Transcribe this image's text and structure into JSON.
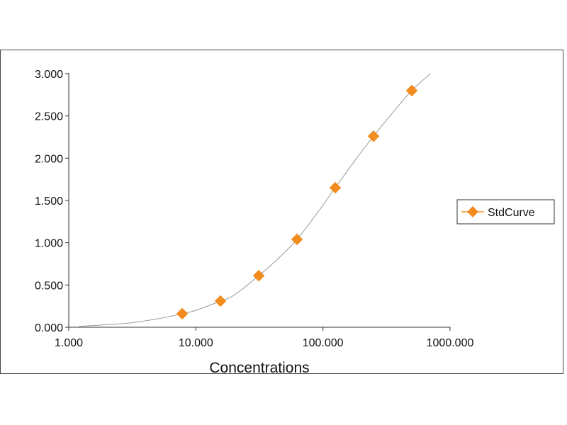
{
  "chart_data": {
    "type": "scatter",
    "title": "",
    "xlabel": "Concentrations",
    "ylabel": "",
    "x_scale": "log",
    "xlim": [
      1,
      1000
    ],
    "ylim": [
      0,
      3
    ],
    "x_ticks": [
      1,
      10,
      100,
      1000
    ],
    "x_tick_labels": [
      "1.000",
      "10.000",
      "100.000",
      "1000.000"
    ],
    "y_ticks": [
      0,
      0.5,
      1.0,
      1.5,
      2.0,
      2.5,
      3.0
    ],
    "y_tick_labels": [
      "0.000",
      "0.500",
      "1.000",
      "1.500",
      "2.000",
      "2.500",
      "3.000"
    ],
    "grid": false,
    "legend_position": "right",
    "series": [
      {
        "name": "StdCurve",
        "marker": "diamond",
        "color": "#f28c1e",
        "x": [
          7.81,
          15.63,
          31.25,
          62.5,
          125,
          250,
          500
        ],
        "y": [
          0.16,
          0.31,
          0.61,
          1.04,
          1.65,
          2.26,
          2.8
        ]
      }
    ],
    "fit_curve": {
      "color": "#9a9a9a",
      "x": [
        1.2,
        2,
        3,
        5,
        7.81,
        10,
        15.63,
        20,
        31.25,
        45,
        62.5,
        90,
        125,
        180,
        250,
        350,
        500,
        700
      ],
      "y": [
        0.01,
        0.03,
        0.05,
        0.1,
        0.16,
        0.2,
        0.31,
        0.38,
        0.61,
        0.82,
        1.04,
        1.35,
        1.65,
        1.98,
        2.26,
        2.53,
        2.8,
        3.0
      ]
    }
  }
}
